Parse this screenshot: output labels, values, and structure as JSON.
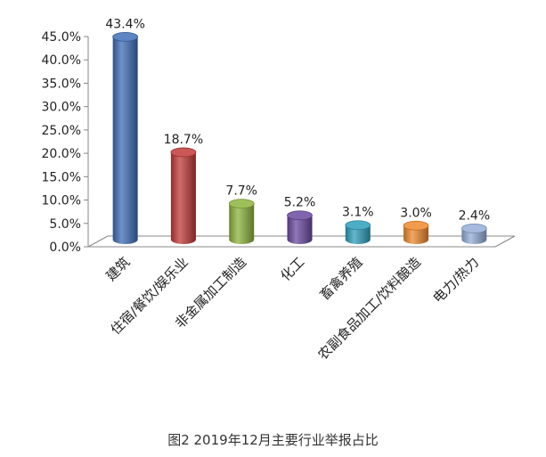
{
  "caption": "图2 2019年12月主要行业举报占比",
  "chart_data": {
    "type": "bar",
    "title": "",
    "xlabel": "",
    "ylabel": "",
    "ylim": [
      0,
      45
    ],
    "y_ticks": [
      "0.0%",
      "5.0%",
      "10.0%",
      "15.0%",
      "20.0%",
      "25.0%",
      "30.0%",
      "35.0%",
      "40.0%",
      "45.0%"
    ],
    "categories": [
      "建筑",
      "住宿/餐饮/娱乐业",
      "非金属加工制造",
      "化工",
      "畜禽养殖",
      "农副食品加工/饮料酿造",
      "电力/热力"
    ],
    "values": [
      43.4,
      18.7,
      7.7,
      5.2,
      3.1,
      3.0,
      2.4
    ],
    "value_labels": [
      "43.4%",
      "18.7%",
      "7.7%",
      "5.2%",
      "3.1%",
      "3.0%",
      "2.4%"
    ],
    "colors": [
      "#3f6fb6",
      "#c23b39",
      "#8eb43e",
      "#6a4aa0",
      "#2f9fbc",
      "#ef8a2e",
      "#95aed8"
    ],
    "grid": false,
    "legend": "none",
    "style": "3d-cylinder"
  }
}
